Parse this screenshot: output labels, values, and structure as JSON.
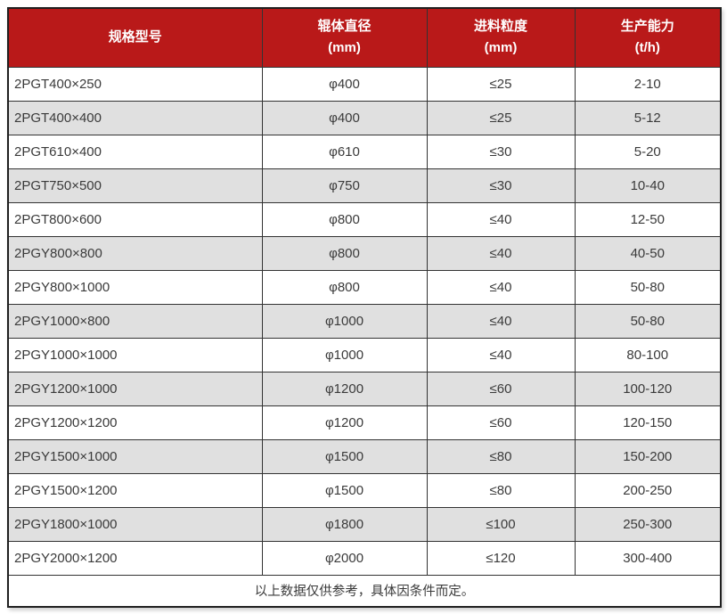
{
  "chart_data": {
    "type": "table",
    "columns": [
      {
        "label": "规格型号",
        "unit": ""
      },
      {
        "label": "辊体直径",
        "unit": "(mm)"
      },
      {
        "label": "进料粒度",
        "unit": "(mm)"
      },
      {
        "label": "生产能力",
        "unit": "(t/h)"
      }
    ],
    "rows": [
      [
        "2PGT400×250",
        "φ400",
        "≤25",
        "2-10"
      ],
      [
        "2PGT400×400",
        "φ400",
        "≤25",
        "5-12"
      ],
      [
        "2PGT610×400",
        "φ610",
        "≤30",
        "5-20"
      ],
      [
        "2PGT750×500",
        "φ750",
        "≤30",
        "10-40"
      ],
      [
        "2PGT800×600",
        "φ800",
        "≤40",
        "12-50"
      ],
      [
        "2PGY800×800",
        "φ800",
        "≤40",
        "40-50"
      ],
      [
        "2PGY800×1000",
        "φ800",
        "≤40",
        "50-80"
      ],
      [
        "2PGY1000×800",
        "φ1000",
        "≤40",
        "50-80"
      ],
      [
        "2PGY1000×1000",
        "φ1000",
        "≤40",
        "80-100"
      ],
      [
        "2PGY1200×1000",
        "φ1200",
        "≤60",
        "100-120"
      ],
      [
        "2PGY1200×1200",
        "φ1200",
        "≤60",
        "120-150"
      ],
      [
        "2PGY1500×1000",
        "φ1500",
        "≤80",
        "150-200"
      ],
      [
        "2PGY1500×1200",
        "φ1500",
        "≤80",
        "200-250"
      ],
      [
        "2PGY1800×1000",
        "φ1800",
        "≤100",
        "250-300"
      ],
      [
        "2PGY2000×1200",
        "φ2000",
        "≤120",
        "300-400"
      ]
    ],
    "footer_note": "以上数据仅供参考，具体因条件而定。"
  },
  "colors": {
    "header_bg": "#b91919",
    "header_text": "#ffffff",
    "row_bg": "#ffffff",
    "row_alt_bg": "#e0e0e0",
    "body_text": "#3a3a3a",
    "border": "#333333"
  }
}
